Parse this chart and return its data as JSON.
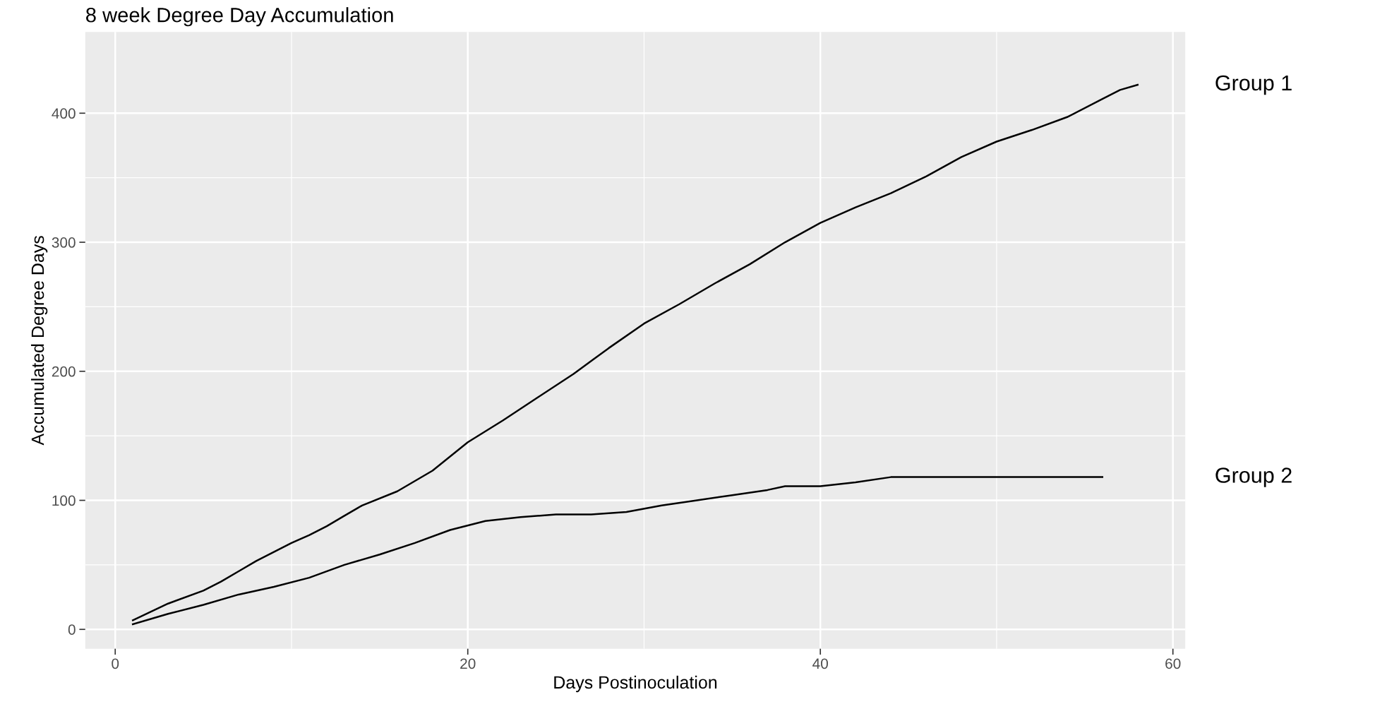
{
  "chart_data": {
    "type": "line",
    "title": "8 week Degree Day Accumulation",
    "xlabel": "Days Postinoculation",
    "ylabel": "Accumulated Degree Days",
    "xlim": [
      -1.7,
      60.7
    ],
    "ylim": [
      -15,
      463
    ],
    "xticks": [
      0,
      20,
      40,
      60
    ],
    "yticks": [
      0,
      100,
      200,
      300,
      400
    ],
    "grid": true,
    "line_style": "solid",
    "marker": "none",
    "series": [
      {
        "name": "Group 1",
        "color": "#000000",
        "x": [
          1,
          3,
          5,
          6,
          7,
          8,
          10,
          11,
          12,
          13,
          14,
          16,
          18,
          20,
          22,
          24,
          26,
          28,
          30,
          32,
          34,
          36,
          38,
          40,
          42,
          44,
          46,
          48,
          50,
          52,
          54,
          56,
          57,
          58
        ],
        "values": [
          7,
          20,
          30,
          37,
          45,
          53,
          67,
          73,
          80,
          88,
          96,
          107,
          123,
          145,
          162,
          180,
          198,
          218,
          237,
          252,
          268,
          283,
          300,
          315,
          327,
          338,
          351,
          366,
          378,
          387,
          397,
          411,
          418,
          422
        ]
      },
      {
        "name": "Group 2",
        "color": "#000000",
        "x": [
          1,
          3,
          5,
          7,
          9,
          11,
          13,
          15,
          17,
          19,
          21,
          23,
          25,
          27,
          29,
          31,
          33,
          35,
          37,
          38,
          40,
          42,
          44,
          56
        ],
        "values": [
          4,
          12,
          19,
          27,
          33,
          40,
          50,
          58,
          67,
          77,
          84,
          87,
          89,
          89,
          91,
          96,
          100,
          104,
          108,
          111,
          111,
          114,
          118,
          118
        ]
      }
    ]
  }
}
